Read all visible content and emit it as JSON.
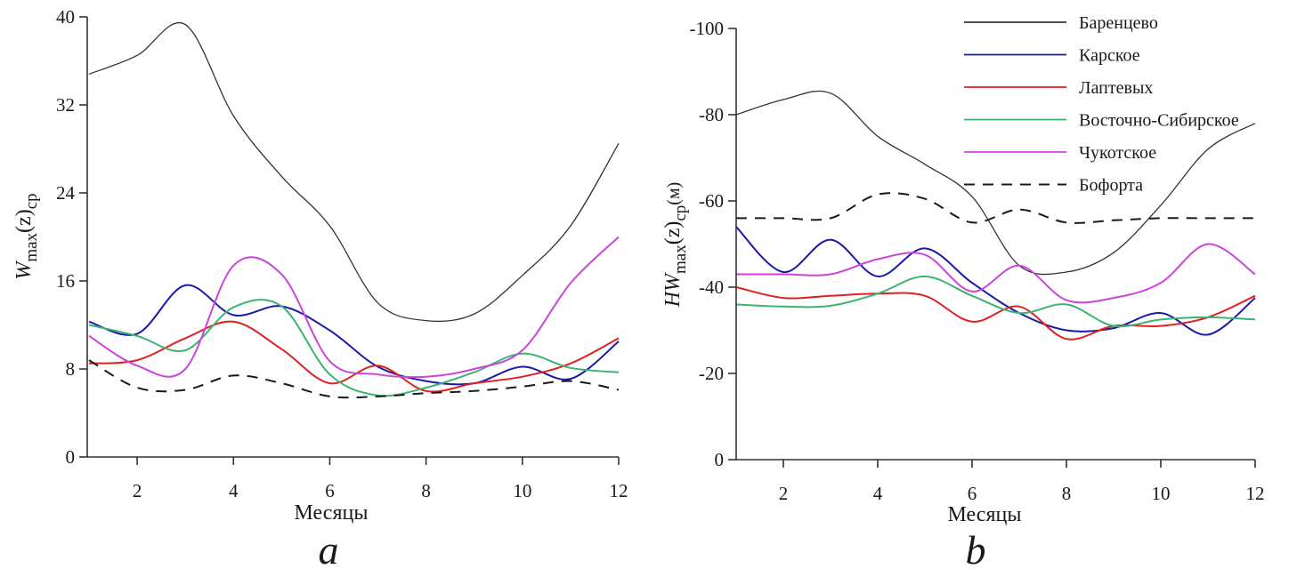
{
  "chart_data": [
    {
      "type": "line",
      "panel": "a",
      "caption": "a",
      "title": "",
      "xlabel": "Месяцы",
      "ylabel": {
        "main": "W",
        "sub": "max",
        "paren": "(z)",
        "sub2": "ср"
      },
      "xlim": [
        1,
        12
      ],
      "ylim": [
        0,
        40
      ],
      "xticks": [
        2,
        4,
        6,
        8,
        10,
        12
      ],
      "yticks": [
        0,
        8,
        16,
        24,
        32,
        40
      ],
      "ytick_labels": [
        "0",
        "8",
        "16",
        "24",
        "32",
        "40"
      ],
      "grid": false,
      "x": [
        1,
        2,
        3,
        4,
        5,
        6,
        7,
        8,
        9,
        10,
        11,
        12
      ],
      "series": [
        {
          "name": "Баренцево",
          "color": "#333333",
          "dash": false,
          "values": [
            34.8,
            36.5,
            39.3,
            31.0,
            25.5,
            21.0,
            14.0,
            12.4,
            13.0,
            16.5,
            21.0,
            28.5
          ]
        },
        {
          "name": "Карское",
          "color": "#1a1aa8",
          "dash": false,
          "values": [
            12.3,
            11.2,
            15.6,
            12.9,
            13.7,
            11.5,
            8.2,
            6.9,
            6.7,
            8.2,
            7.1,
            10.5
          ]
        },
        {
          "name": "Лаптевых",
          "color": "#e02020",
          "dash": false,
          "values": [
            8.5,
            8.8,
            10.8,
            12.3,
            9.8,
            6.7,
            8.3,
            6.0,
            6.7,
            7.3,
            8.5,
            10.8
          ]
        },
        {
          "name": "Восточно-Сибирское",
          "color": "#3cb371",
          "dash": false,
          "values": [
            12.0,
            11.0,
            9.7,
            13.6,
            13.7,
            7.5,
            5.6,
            6.3,
            7.7,
            9.4,
            8.1,
            7.7
          ]
        },
        {
          "name": "Чукотское",
          "color": "#cc44dd",
          "dash": false,
          "values": [
            11.0,
            8.3,
            8.0,
            17.4,
            16.6,
            8.7,
            7.5,
            7.3,
            8.0,
            9.7,
            15.8,
            20.0
          ]
        },
        {
          "name": "Бофорта",
          "color": "#1a1a1a",
          "dash": true,
          "values": [
            8.8,
            6.3,
            6.1,
            7.4,
            6.7,
            5.5,
            5.5,
            5.8,
            6.0,
            6.4,
            6.9,
            6.1
          ]
        }
      ]
    },
    {
      "type": "line",
      "panel": "b",
      "caption": "b",
      "title": "",
      "xlabel": "Месяцы",
      "ylabel": {
        "main": "HW",
        "sub": "max",
        "paren": "(z)",
        "sub2": "ср",
        "unit": "(м)"
      },
      "xlim": [
        1,
        12
      ],
      "ylim": [
        0,
        -100
      ],
      "xticks": [
        2,
        4,
        6,
        8,
        10,
        12
      ],
      "yticks": [
        0,
        -20,
        -40,
        -60,
        -80,
        -100
      ],
      "ytick_labels": [
        "0",
        "-20",
        "-40",
        "-60",
        "-80",
        "-100"
      ],
      "grid": false,
      "legend_position": "top-right",
      "x": [
        1,
        2,
        3,
        4,
        5,
        6,
        7,
        8,
        9,
        10,
        11,
        12
      ],
      "series": [
        {
          "name": "Баренцево",
          "color": "#333333",
          "dash": false,
          "values": [
            -80,
            -83.5,
            -85,
            -75,
            -68.5,
            -61,
            -45,
            -43.5,
            -48,
            -59,
            -72,
            -78
          ]
        },
        {
          "name": "Карское",
          "color": "#1a1aa8",
          "dash": false,
          "values": [
            -54,
            -43.5,
            -51,
            -42.5,
            -49,
            -41,
            -34,
            -30,
            -30.5,
            -34,
            -29,
            -37.5
          ]
        },
        {
          "name": "Лаптевых",
          "color": "#e02020",
          "dash": false,
          "values": [
            -40,
            -37.5,
            -38,
            -38.5,
            -38,
            -32,
            -35.5,
            -28,
            -31,
            -31,
            -33,
            -38
          ]
        },
        {
          "name": "Восточно-Сибирское",
          "color": "#3cb371",
          "dash": false,
          "values": [
            -36,
            -35.5,
            -35.7,
            -38.5,
            -42.5,
            -38,
            -34,
            -36,
            -31,
            -32.5,
            -33,
            -32.5
          ]
        },
        {
          "name": "Чукотское",
          "color": "#cc44dd",
          "dash": false,
          "values": [
            -43,
            -43,
            -43,
            -46.5,
            -47.5,
            -39,
            -45,
            -37,
            -37.5,
            -41,
            -50,
            -43
          ]
        },
        {
          "name": "Бофорта",
          "color": "#1a1a1a",
          "dash": true,
          "values": [
            -56,
            -56,
            -56,
            -61.5,
            -60.5,
            -55,
            -58,
            -55,
            -55.5,
            -56,
            -56,
            -56
          ]
        }
      ]
    }
  ],
  "legend": {
    "items": [
      {
        "label": "Баренцево",
        "color": "#333333",
        "dash": false
      },
      {
        "label": "Карское",
        "color": "#1a1aa8",
        "dash": false
      },
      {
        "label": "Лаптевых",
        "color": "#e02020",
        "dash": false
      },
      {
        "label": "Восточно-Сибирское",
        "color": "#3cb371",
        "dash": false
      },
      {
        "label": "Чукотское",
        "color": "#cc44dd",
        "dash": false
      },
      {
        "label": "Бофорта",
        "color": "#1a1a1a",
        "dash": true
      }
    ]
  }
}
